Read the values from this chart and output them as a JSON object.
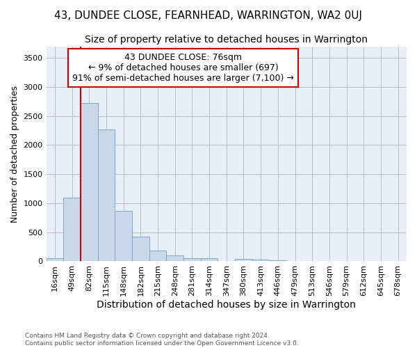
{
  "title": "43, DUNDEE CLOSE, FEARNHEAD, WARRINGTON, WA2 0UJ",
  "subtitle": "Size of property relative to detached houses in Warrington",
  "xlabel": "Distribution of detached houses by size in Warrington",
  "ylabel": "Number of detached properties",
  "footer_line1": "Contains HM Land Registry data © Crown copyright and database right 2024.",
  "footer_line2": "Contains public sector information licensed under the Open Government Licence v3.0.",
  "bar_labels": [
    "16sqm",
    "49sqm",
    "82sqm",
    "115sqm",
    "148sqm",
    "182sqm",
    "215sqm",
    "248sqm",
    "281sqm",
    "314sqm",
    "347sqm",
    "380sqm",
    "413sqm",
    "446sqm",
    "479sqm",
    "513sqm",
    "546sqm",
    "579sqm",
    "612sqm",
    "645sqm",
    "678sqm"
  ],
  "bar_values": [
    50,
    1100,
    2730,
    2270,
    870,
    420,
    180,
    100,
    55,
    50,
    10,
    45,
    30,
    20,
    5,
    0,
    0,
    0,
    0,
    0,
    0
  ],
  "bar_color": "#c8d8ea",
  "bar_edge_color": "#7aaac8",
  "ylim": [
    0,
    3700
  ],
  "yticks": [
    0,
    500,
    1000,
    1500,
    2000,
    2500,
    3000,
    3500
  ],
  "annotation_text": "43 DUNDEE CLOSE: 76sqm\n← 9% of detached houses are smaller (697)\n91% of semi-detached houses are larger (7,100) →",
  "vline_x_index": 2,
  "vline_color": "#cc0000",
  "annotation_box_color": "#ffffff",
  "annotation_box_edge": "#cc0000",
  "grid_color": "#bbbbcc",
  "bg_color": "#e8eef8",
  "title_fontsize": 11,
  "subtitle_fontsize": 10,
  "tick_fontsize": 8,
  "ylabel_fontsize": 9,
  "xlabel_fontsize": 10,
  "annotation_fontsize": 9
}
